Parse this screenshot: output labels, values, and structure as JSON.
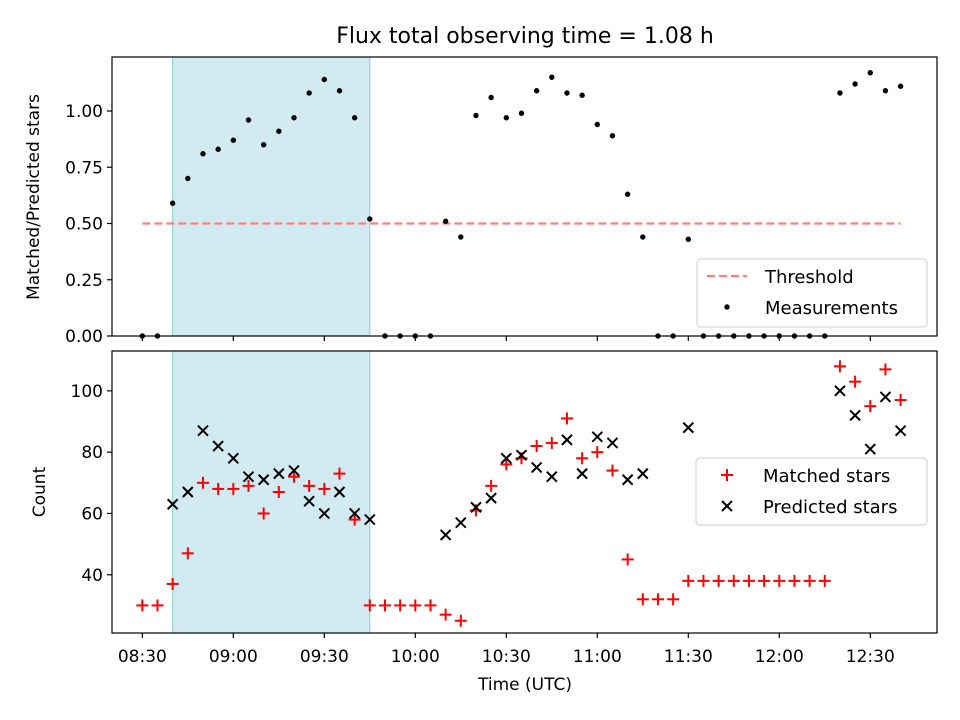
{
  "title": "Flux total observing time = 1.08 h",
  "colors": {
    "shade": "#add8e6",
    "threshold": "#ff7f7f",
    "measurement": "#000000",
    "matched": "#ff0000",
    "predicted": "#000000"
  },
  "chart_data": [
    {
      "type": "scatter",
      "ylabel": "Matched/Predicted stars",
      "ylim": [
        0,
        1.24
      ],
      "yticks": [
        0,
        0.25,
        0.5,
        0.75,
        1.0
      ],
      "ytick_labels": [
        "0.00",
        "0.25",
        "0.50",
        "0.75",
        "1.00"
      ],
      "xlim": [
        "08:20",
        "12:52"
      ],
      "shaded_span": [
        "08:40",
        "09:45"
      ],
      "legend_position": "lower right",
      "threshold": {
        "name": "Threshold",
        "value": 0.5,
        "x_range": [
          "08:30",
          "12:40"
        ],
        "style": "dashed"
      },
      "series": [
        {
          "name": "Measurements",
          "marker": "dot",
          "points": [
            [
              "08:30",
              0
            ],
            [
              "08:35",
              0
            ],
            [
              "08:40",
              0.59
            ],
            [
              "08:45",
              0.7
            ],
            [
              "08:50",
              0.81
            ],
            [
              "08:55",
              0.83
            ],
            [
              "09:00",
              0.87
            ],
            [
              "09:05",
              0.96
            ],
            [
              "09:10",
              0.85
            ],
            [
              "09:15",
              0.91
            ],
            [
              "09:20",
              0.97
            ],
            [
              "09:25",
              1.08
            ],
            [
              "09:30",
              1.14
            ],
            [
              "09:35",
              1.09
            ],
            [
              "09:40",
              0.97
            ],
            [
              "09:45",
              0.52
            ],
            [
              "09:50",
              0
            ],
            [
              "09:55",
              0
            ],
            [
              "10:00",
              0
            ],
            [
              "10:05",
              0
            ],
            [
              "10:10",
              0.51
            ],
            [
              "10:15",
              0.44
            ],
            [
              "10:20",
              0.98
            ],
            [
              "10:25",
              1.06
            ],
            [
              "10:30",
              0.97
            ],
            [
              "10:35",
              0.99
            ],
            [
              "10:40",
              1.09
            ],
            [
              "10:45",
              1.15
            ],
            [
              "10:50",
              1.08
            ],
            [
              "10:55",
              1.07
            ],
            [
              "11:00",
              0.94
            ],
            [
              "11:05",
              0.89
            ],
            [
              "11:10",
              0.63
            ],
            [
              "11:15",
              0.44
            ],
            [
              "11:20",
              0
            ],
            [
              "11:25",
              0
            ],
            [
              "11:30",
              0.43
            ],
            [
              "11:35",
              0
            ],
            [
              "11:40",
              0
            ],
            [
              "11:45",
              0
            ],
            [
              "11:50",
              0
            ],
            [
              "11:55",
              0
            ],
            [
              "12:00",
              0
            ],
            [
              "12:05",
              0
            ],
            [
              "12:10",
              0
            ],
            [
              "12:15",
              0
            ],
            [
              "12:20",
              1.08
            ],
            [
              "12:25",
              1.12
            ],
            [
              "12:30",
              1.17
            ],
            [
              "12:35",
              1.09
            ],
            [
              "12:40",
              1.11
            ]
          ]
        }
      ]
    },
    {
      "type": "scatter",
      "xlabel": "Time (UTC)",
      "ylabel": "Count",
      "ylim": [
        21,
        113
      ],
      "yticks": [
        40,
        60,
        80,
        100
      ],
      "ytick_labels": [
        "40",
        "60",
        "80",
        "100"
      ],
      "xlim": [
        "08:20",
        "12:52"
      ],
      "xticks": [
        "08:30",
        "09:00",
        "09:30",
        "10:00",
        "10:30",
        "11:00",
        "11:30",
        "12:00",
        "12:30"
      ],
      "xtick_labels": [
        "08:30",
        "09:00",
        "09:30",
        "10:00",
        "10:30",
        "11:00",
        "11:30",
        "12:00",
        "12:30"
      ],
      "shaded_span": [
        "08:40",
        "09:45"
      ],
      "legend_position": "center right",
      "series": [
        {
          "name": "Matched stars",
          "marker": "plus",
          "points": [
            [
              "08:30",
              30
            ],
            [
              "08:35",
              30
            ],
            [
              "08:40",
              37
            ],
            [
              "08:45",
              47
            ],
            [
              "08:50",
              70
            ],
            [
              "08:55",
              68
            ],
            [
              "09:00",
              68
            ],
            [
              "09:05",
              69
            ],
            [
              "09:10",
              60
            ],
            [
              "09:15",
              67
            ],
            [
              "09:20",
              72
            ],
            [
              "09:25",
              69
            ],
            [
              "09:30",
              68
            ],
            [
              "09:35",
              73
            ],
            [
              "09:40",
              58
            ],
            [
              "09:45",
              30
            ],
            [
              "09:50",
              30
            ],
            [
              "09:55",
              30
            ],
            [
              "10:00",
              30
            ],
            [
              "10:05",
              30
            ],
            [
              "10:10",
              27
            ],
            [
              "10:15",
              25
            ],
            [
              "10:20",
              61
            ],
            [
              "10:25",
              69
            ],
            [
              "10:30",
              76
            ],
            [
              "10:35",
              78
            ],
            [
              "10:40",
              82
            ],
            [
              "10:45",
              83
            ],
            [
              "10:50",
              91
            ],
            [
              "10:55",
              78
            ],
            [
              "11:00",
              80
            ],
            [
              "11:05",
              74
            ],
            [
              "11:10",
              45
            ],
            [
              "11:15",
              32
            ],
            [
              "11:20",
              32
            ],
            [
              "11:25",
              32
            ],
            [
              "11:30",
              38
            ],
            [
              "11:35",
              38
            ],
            [
              "11:40",
              38
            ],
            [
              "11:45",
              38
            ],
            [
              "11:50",
              38
            ],
            [
              "11:55",
              38
            ],
            [
              "12:00",
              38
            ],
            [
              "12:05",
              38
            ],
            [
              "12:10",
              38
            ],
            [
              "12:15",
              38
            ],
            [
              "12:20",
              108
            ],
            [
              "12:25",
              103
            ],
            [
              "12:30",
              95
            ],
            [
              "12:35",
              107
            ],
            [
              "12:40",
              97
            ]
          ]
        },
        {
          "name": "Predicted stars",
          "marker": "x",
          "points": [
            [
              "08:40",
              63
            ],
            [
              "08:45",
              67
            ],
            [
              "08:50",
              87
            ],
            [
              "08:55",
              82
            ],
            [
              "09:00",
              78
            ],
            [
              "09:05",
              72
            ],
            [
              "09:10",
              71
            ],
            [
              "09:15",
              73
            ],
            [
              "09:20",
              74
            ],
            [
              "09:25",
              64
            ],
            [
              "09:30",
              60
            ],
            [
              "09:35",
              67
            ],
            [
              "09:40",
              60
            ],
            [
              "09:45",
              58
            ],
            [
              "10:10",
              53
            ],
            [
              "10:15",
              57
            ],
            [
              "10:20",
              62
            ],
            [
              "10:25",
              65
            ],
            [
              "10:30",
              78
            ],
            [
              "10:35",
              79
            ],
            [
              "10:40",
              75
            ],
            [
              "10:45",
              72
            ],
            [
              "10:50",
              84
            ],
            [
              "10:55",
              73
            ],
            [
              "11:00",
              85
            ],
            [
              "11:05",
              83
            ],
            [
              "11:10",
              71
            ],
            [
              "11:15",
              73
            ],
            [
              "11:30",
              88
            ],
            [
              "12:20",
              100
            ],
            [
              "12:25",
              92
            ],
            [
              "12:30",
              81
            ],
            [
              "12:35",
              98
            ],
            [
              "12:40",
              87
            ]
          ]
        }
      ]
    }
  ]
}
